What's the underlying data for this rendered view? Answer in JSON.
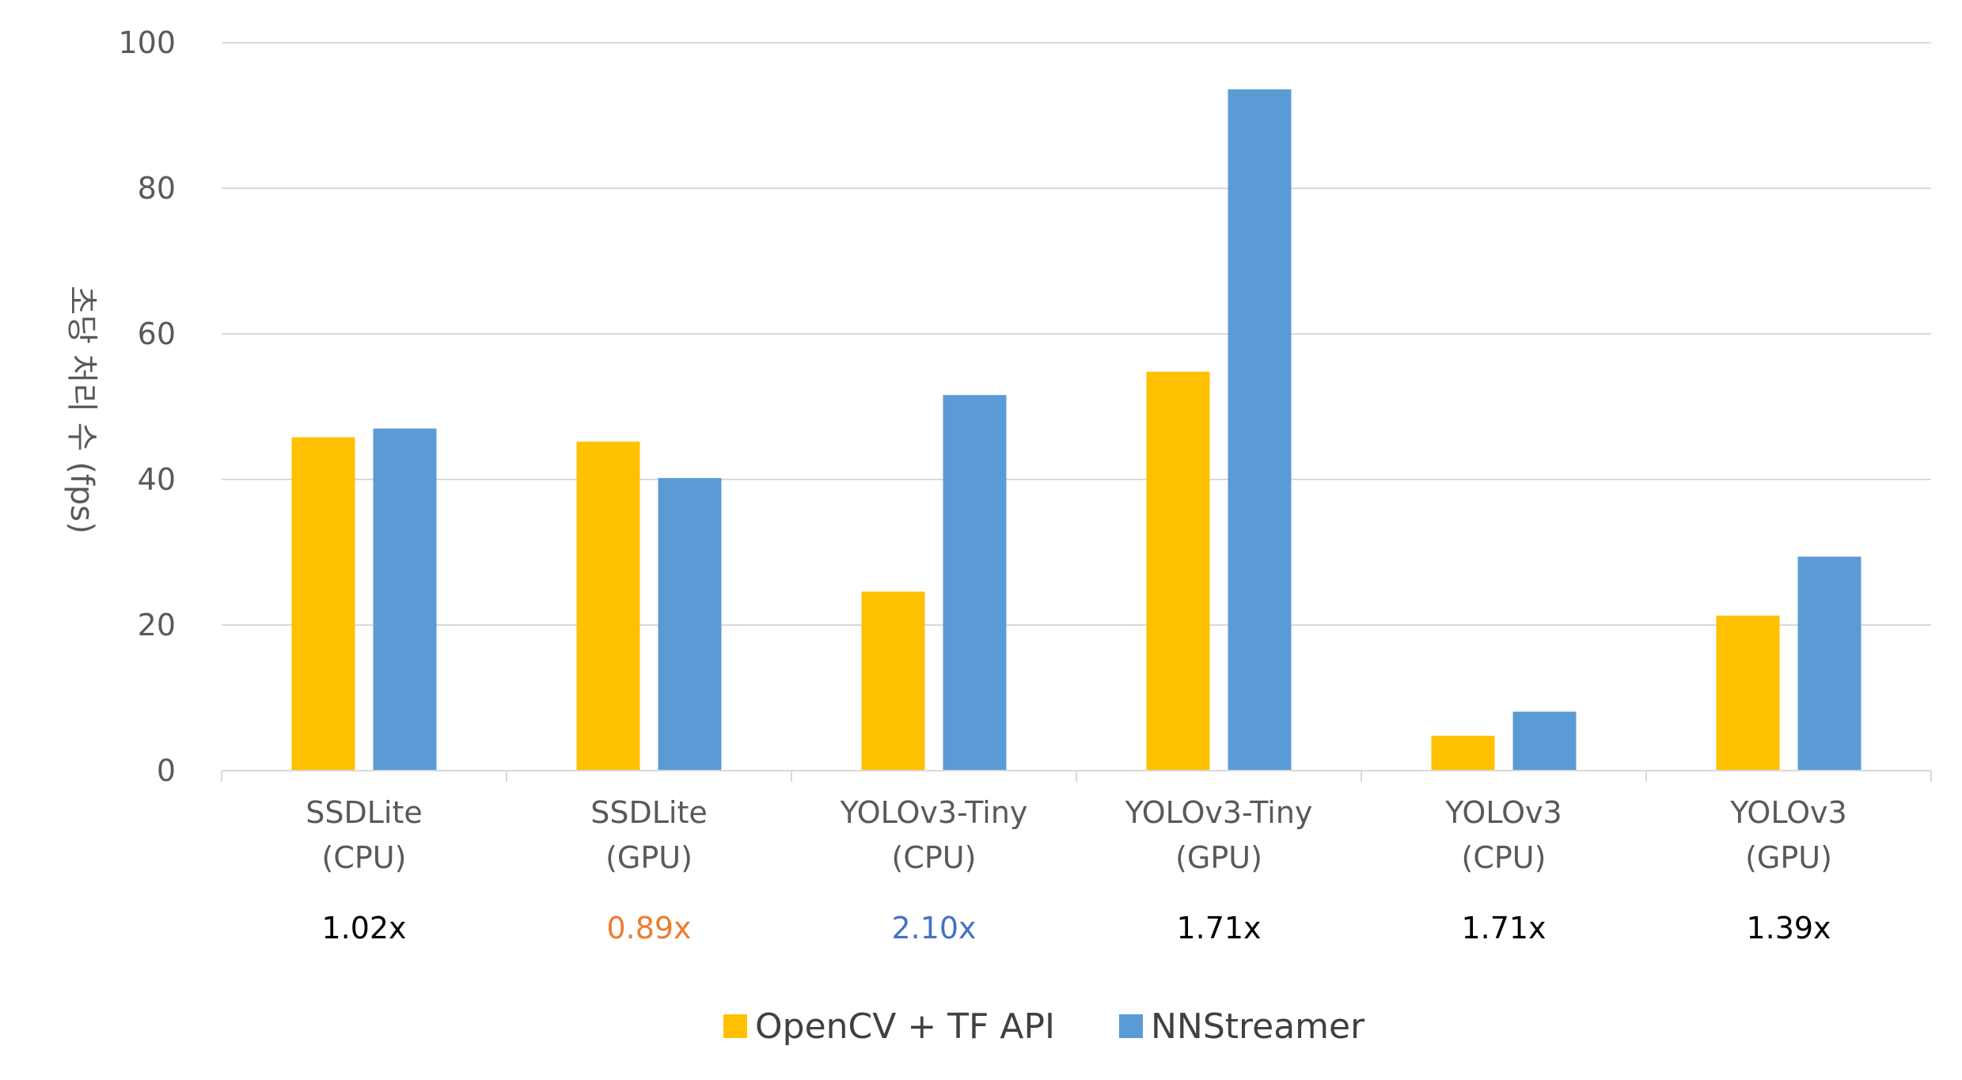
{
  "chart_data": {
    "type": "bar",
    "ylabel": "초당 처리 수 (fps)",
    "ylim": [
      0,
      100
    ],
    "yticks": [
      "0",
      "20",
      "40",
      "60",
      "80",
      "100"
    ],
    "grid": true,
    "legend_position": "bottom",
    "categories": [
      {
        "line1": "SSDLite",
        "line2": "(CPU)"
      },
      {
        "line1": "SSDLite",
        "line2": "(GPU)"
      },
      {
        "line1": "YOLOv3-Tiny",
        "line2": "(CPU)"
      },
      {
        "line1": "YOLOv3-Tiny",
        "line2": "(GPU)"
      },
      {
        "line1": "YOLOv3",
        "line2": "(CPU)"
      },
      {
        "line1": "YOLOv3",
        "line2": "(GPU)"
      }
    ],
    "series": [
      {
        "name": "OpenCV + TF API",
        "color": "#FFC000",
        "values": [
          45.8,
          45.2,
          24.6,
          54.8,
          4.8,
          21.3
        ]
      },
      {
        "name": "NNStreamer",
        "color": "#5B9BD5",
        "values": [
          47.0,
          40.2,
          51.6,
          93.6,
          8.1,
          29.4
        ]
      }
    ],
    "annotations": [
      {
        "text": "1.02x",
        "color": "#000000"
      },
      {
        "text": "0.89x",
        "color": "#ED7D31"
      },
      {
        "text": "2.10x",
        "color": "#4472C4"
      },
      {
        "text": "1.71x",
        "color": "#000000"
      },
      {
        "text": "1.71x",
        "color": "#000000"
      },
      {
        "text": "1.39x",
        "color": "#000000"
      }
    ]
  }
}
